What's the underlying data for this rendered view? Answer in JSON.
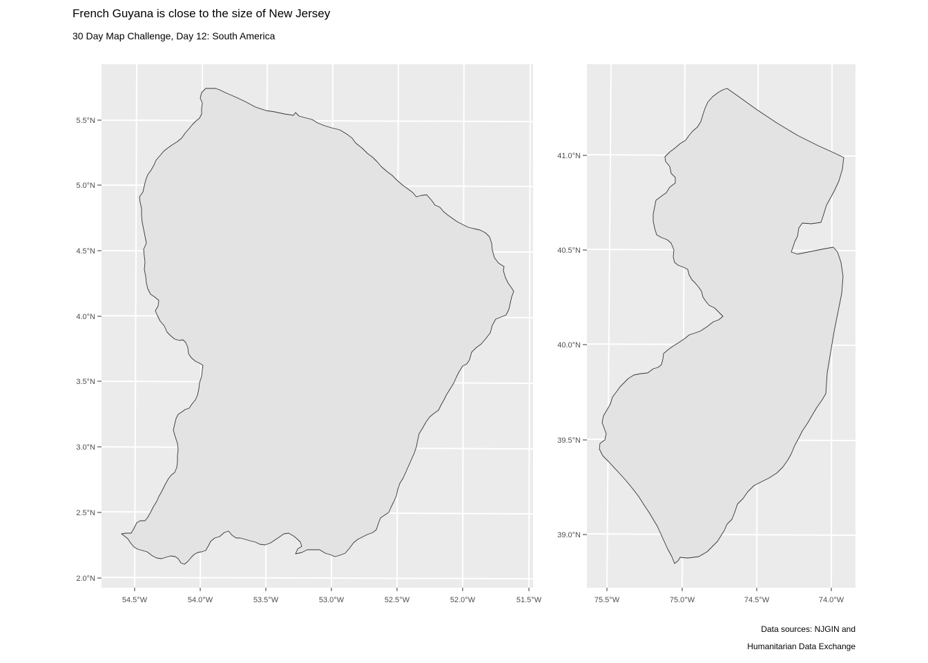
{
  "header": {
    "title": "French Guyana is close to the size of New Jersey",
    "subtitle": "30 Day Map Challenge, Day 12: South America"
  },
  "caption": {
    "line1": "Data sources: NJGIN and",
    "line2": "Humanitarian Data Exchange"
  },
  "colors": {
    "panel_background": "#ebebeb",
    "grid": "#ffffff",
    "land_fill": "#e3e3e3",
    "outline": "#333333",
    "tick_text": "#4d4d4d"
  },
  "panels": [
    {
      "name": "french-guiana",
      "y_ticks": [
        "5.5°N",
        "5.0°N",
        "4.5°N",
        "4.0°N",
        "3.5°N",
        "3.0°N",
        "2.5°N",
        "2.0°N"
      ],
      "x_ticks": [
        "54.5°W",
        "54.0°W",
        "53.5°W",
        "53.0°W",
        "52.5°W",
        "52.0°W",
        "51.5°W"
      ]
    },
    {
      "name": "new-jersey",
      "y_ticks": [
        "41.0°N",
        "40.5°N",
        "40.0°N",
        "39.5°N",
        "39.0°N"
      ],
      "x_ticks": [
        "75.5°W",
        "75.0°W",
        "74.5°W",
        "74.0°W"
      ]
    }
  ]
}
